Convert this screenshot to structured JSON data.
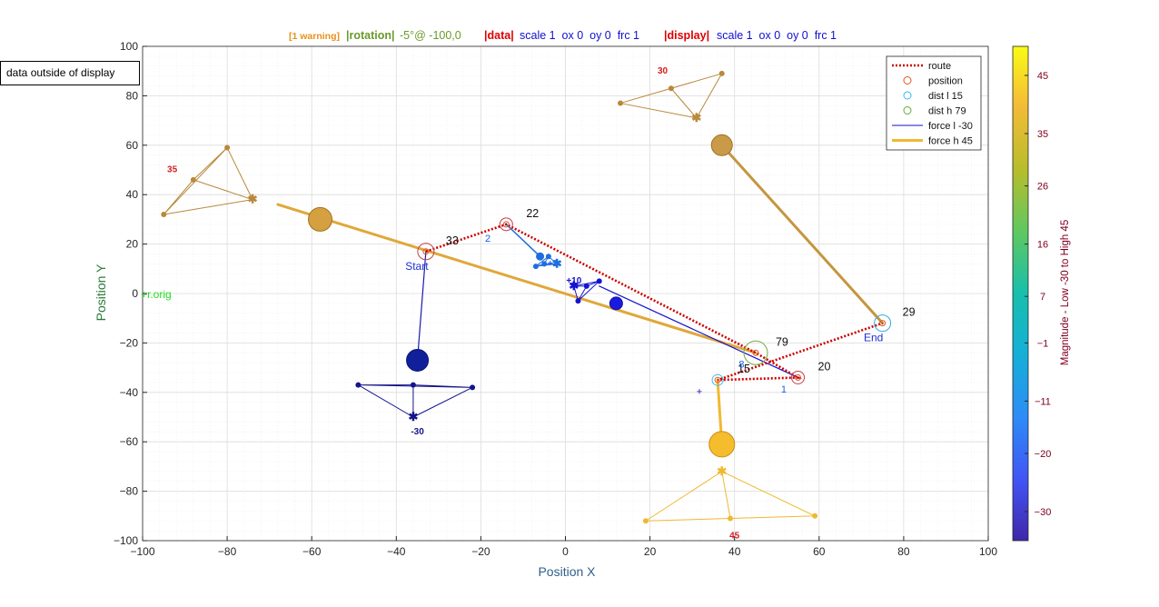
{
  "header": {
    "warning": "[1 warning]",
    "rotation_key": "|rotation|",
    "rotation_value": "-5°@ -100,0",
    "data_key": "|data|",
    "data_value": "scale 1  ox 0  oy 0  frc 1",
    "display_key": "|display|",
    "display_value": "scale 1  ox 0  oy 0  frc 1"
  },
  "note": "data outside of display",
  "colors": {
    "warning": "#e8911b",
    "rotation": "#6a9a2a",
    "key_red": "#e00000",
    "value_blue": "#1010d0",
    "route": "#cc0000",
    "axis_label_x": "#2f5f8a",
    "axis_label_y": "#2a7a3a",
    "colorbar_label": "#800020",
    "orig": "#22dd22"
  },
  "chart_data": {
    "type": "scatter",
    "xlabel": "Position X",
    "ylabel": "Position Y",
    "xlim": [
      -100,
      100
    ],
    "ylim": [
      -100,
      100
    ],
    "xticks": [
      -100,
      -80,
      -60,
      -40,
      -20,
      0,
      20,
      40,
      60,
      80,
      100
    ],
    "yticks": [
      -100,
      -80,
      -60,
      -40,
      -20,
      0,
      20,
      40,
      60,
      80,
      100
    ],
    "grid": true,
    "minor_grid": true,
    "legend_position": "top-right",
    "legend": [
      {
        "label": "route",
        "style": "dotted",
        "color": "#cc0000"
      },
      {
        "label": "position",
        "style": "circle",
        "color": "#d9582a"
      },
      {
        "label": "dist l 15",
        "style": "circle",
        "color": "#33bbee"
      },
      {
        "label": "dist h 79",
        "style": "circle",
        "color": "#66aa33"
      },
      {
        "label": "force l -30",
        "style": "line",
        "color": "#1010cc"
      },
      {
        "label": "force h 45",
        "style": "thick",
        "color": "#f2b830"
      }
    ],
    "origin_label": "+r.orig",
    "origin": [
      -100,
      0
    ],
    "route": [
      {
        "x": -33,
        "y": 17,
        "value": "33",
        "label": "Start"
      },
      {
        "x": -14,
        "y": 28,
        "value": "22"
      },
      {
        "x": 45,
        "y": -24,
        "value": "79"
      },
      {
        "x": 55,
        "y": -34,
        "value": "20"
      },
      {
        "x": 36,
        "y": -35,
        "value": "15"
      },
      {
        "x": 75,
        "y": -12,
        "value": "29",
        "label": "End"
      }
    ],
    "force_lines": [
      {
        "x1": -68,
        "y1": 36,
        "x2": 45,
        "y2": -24,
        "color": "#e0a83a",
        "width": 3
      },
      {
        "x1": 37,
        "y1": 60,
        "x2": 75,
        "y2": -12,
        "color": "#c4963e",
        "width": 3
      },
      {
        "x1": 36,
        "y1": -35,
        "x2": 37,
        "y2": -61,
        "color": "#f2b830",
        "width": 3
      },
      {
        "x1": -33,
        "y1": 17,
        "x2": -35,
        "y2": -27,
        "color": "#1a1aa8",
        "width": 1.2
      },
      {
        "x1": -14,
        "y1": 28,
        "x2": -6,
        "y2": 15,
        "color": "#1a6ee0",
        "width": 1.5
      },
      {
        "x1": 8,
        "y1": 3,
        "x2": 55,
        "y2": -34,
        "color": "#1414d0",
        "width": 1.2
      }
    ],
    "force_dots": [
      {
        "x": -58,
        "y": 30,
        "r": 13,
        "color": "#d5a040",
        "stroke": "#a07020"
      },
      {
        "x": 37,
        "y": 60,
        "r": 11.5,
        "color": "#c99a48",
        "stroke": "#a07020"
      },
      {
        "x": 37,
        "y": -61,
        "r": 14,
        "color": "#f5bd2e",
        "stroke": "#c89010"
      },
      {
        "x": -35,
        "y": -27,
        "r": 12,
        "color": "#10209a",
        "stroke": "#0a1470"
      },
      {
        "x": 12,
        "y": -4,
        "r": 7,
        "color": "#1a1ae0",
        "stroke": "#1010a0"
      },
      {
        "x": -6,
        "y": 15,
        "r": 4,
        "color": "#1e6ee0",
        "stroke": "#1e6ee0"
      }
    ],
    "triangles": [
      {
        "label": "35",
        "label_pos": [
          -93,
          49
        ],
        "center": [
          -74,
          38
        ],
        "pts": [
          [
            -95,
            32
          ],
          [
            -88,
            46
          ],
          [
            -80,
            59
          ]
        ],
        "color": "#b8893a"
      },
      {
        "label": "30",
        "label_pos": [
          23,
          89
        ],
        "center": [
          31,
          71
        ],
        "pts": [
          [
            13,
            77
          ],
          [
            25,
            83
          ],
          [
            37,
            89
          ]
        ],
        "color": "#b8893a"
      },
      {
        "label": "45",
        "label_pos": [
          40,
          -99
        ],
        "center": [
          37,
          -72
        ],
        "pts": [
          [
            19,
            -92
          ],
          [
            39,
            -91
          ],
          [
            59,
            -90
          ]
        ],
        "color": "#f0b830"
      },
      {
        "label": "-30",
        "label_pos": [
          -35,
          -57
        ],
        "center": [
          -36,
          -50
        ],
        "pts": [
          [
            -49,
            -37
          ],
          [
            -36,
            -37
          ],
          [
            -22,
            -38
          ]
        ],
        "color": "#14148a"
      },
      {
        "label": "+3",
        "label_pos": [
          -3,
          11
        ],
        "center": [
          -2,
          12
        ],
        "pts": [
          [
            -7,
            11
          ],
          [
            -4,
            15
          ],
          [
            -5,
            12
          ]
        ],
        "color": "#1e6ee0"
      },
      {
        "label": "+10",
        "label_pos": [
          2,
          4
        ],
        "center": [
          2,
          3
        ],
        "pts": [
          [
            8,
            5
          ],
          [
            3,
            -3
          ],
          [
            5,
            3
          ]
        ],
        "color": "#1414d0"
      }
    ],
    "vector_labels": [
      {
        "text": "2",
        "x": -19,
        "y": 21,
        "color": "#1e5ee0"
      },
      {
        "text": "1",
        "x": 51,
        "y": -40,
        "color": "#1e5ee0"
      },
      {
        "text": "8",
        "x": 41,
        "y": -30,
        "color": "#1e5ee0"
      },
      {
        "text": "+",
        "x": 31,
        "y": -41,
        "color": "#1414d0"
      }
    ],
    "colorbar": {
      "label": "Magnitude - Low -30 to High 45",
      "ticks": [
        45,
        35,
        26,
        16,
        7,
        -1,
        -11,
        -20,
        -30
      ],
      "range": [
        -35,
        50
      ]
    }
  }
}
